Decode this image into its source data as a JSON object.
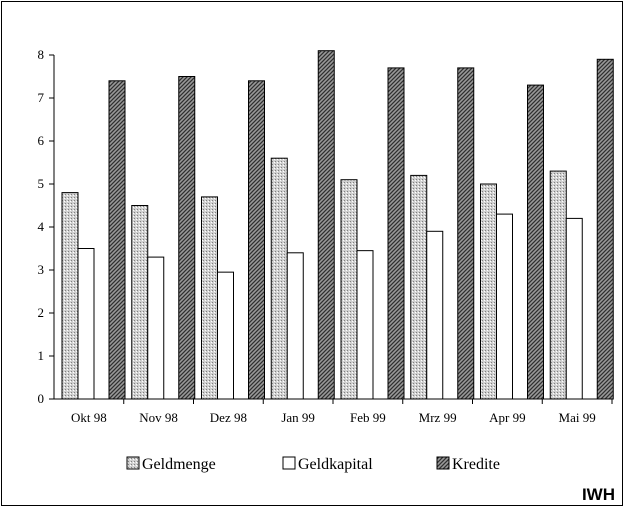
{
  "chart_data": {
    "type": "bar",
    "categories": [
      "Okt 98",
      "Nov 98",
      "Dez 98",
      "Jan 99",
      "Feb 99",
      "Mrz 99",
      "Apr 99",
      "Mai 99"
    ],
    "series": [
      {
        "name": "Geldmenge",
        "values": [
          4.8,
          4.5,
          4.7,
          5.6,
          5.1,
          5.2,
          5.0,
          5.3
        ],
        "pattern": "light-dots"
      },
      {
        "name": "Geldkapital",
        "values": [
          3.5,
          3.3,
          2.95,
          3.4,
          3.45,
          3.9,
          4.3,
          4.2
        ],
        "pattern": "white"
      },
      {
        "name": "Kredite",
        "values": [
          7.4,
          7.5,
          7.4,
          8.1,
          7.7,
          7.7,
          7.3,
          7.9
        ],
        "pattern": "dark-diagonal"
      }
    ],
    "yticks": [
      0,
      1,
      2,
      3,
      4,
      5,
      6,
      7,
      8
    ],
    "ylim": [
      0,
      8
    ],
    "grid": false,
    "legend_position": "bottom"
  },
  "watermark": "IWH",
  "colors": {
    "bar_outline": "#000000",
    "background": "#ffffff"
  }
}
